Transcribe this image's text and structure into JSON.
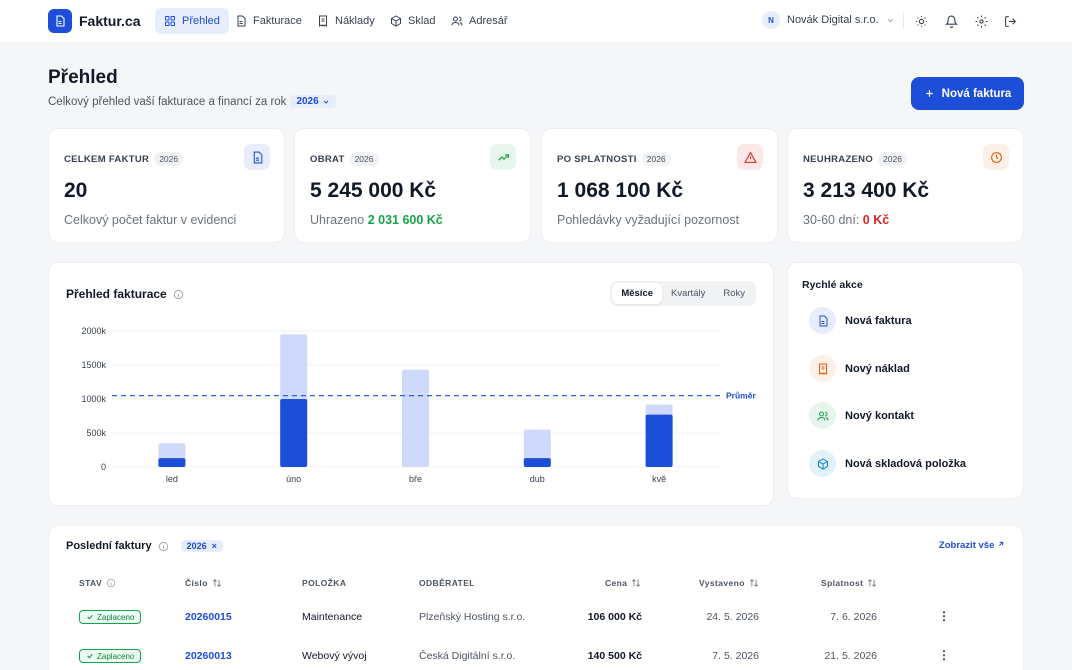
{
  "brand": {
    "name": "Faktur.ca",
    "icon": "document-icon"
  },
  "nav": [
    {
      "label": "Přehled",
      "icon": "grid-icon",
      "active": true
    },
    {
      "label": "Fakturace",
      "icon": "file-icon"
    },
    {
      "label": "Náklady",
      "icon": "receipt-icon"
    },
    {
      "label": "Sklad",
      "icon": "box-icon"
    },
    {
      "label": "Adresář",
      "icon": "users-icon"
    }
  ],
  "org": {
    "initial": "N",
    "name": "Novák Digital s.r.o."
  },
  "page": {
    "title": "Přehled",
    "subtitle": "Celkový přehled vaší fakturace a financí za rok",
    "year": "2026",
    "new_invoice_label": "Nová faktura"
  },
  "stats": [
    {
      "label": "CELKEM FAKTUR",
      "year": "2026",
      "value": "20",
      "note": "Celkový počet faktur v evidenci",
      "icon": "document-icon",
      "color": "#1d4ed8",
      "bg": "#e8edfb"
    },
    {
      "label": "OBRAT",
      "year": "2026",
      "value": "5 245 000 Kč",
      "note_prefix": "Uhrazeno",
      "note_value": "2 031 600 Kč",
      "icon": "trending-up-icon",
      "color": "#16a34a",
      "bg": "#e7f6ec"
    },
    {
      "label": "PO SPLATNOSTI",
      "year": "2026",
      "value": "1 068 100 Kč",
      "note": "Pohledávky vyžadující pozornost",
      "icon": "warning-icon",
      "color": "#dc2626",
      "bg": "#fde8e8"
    },
    {
      "label": "NEUHRAZENO",
      "year": "2026",
      "value": "3 213 400 Kč",
      "note_prefix": "30-60 dní:",
      "note_value": "0 Kč",
      "icon": "clock-icon",
      "color": "#ea580c",
      "bg": "#fdf0e6"
    }
  ],
  "chart_card": {
    "title": "Přehled fakturace",
    "tabs": [
      "Měsíce",
      "Kvartály",
      "Roky"
    ],
    "active_tab": "Měsíce"
  },
  "chart_data": {
    "type": "bar",
    "categories": [
      "led",
      "úno",
      "bře",
      "dub",
      "kvě"
    ],
    "series": [
      {
        "values": [
          350000,
          1950000,
          1430000,
          550000,
          920000
        ],
        "color": "#cfd9fb"
      },
      {
        "values": [
          130000,
          1000000,
          0,
          130000,
          770000
        ],
        "color": "#1d4ed8"
      }
    ],
    "ylim": [
      0,
      2000000
    ],
    "yticks": [
      0,
      500000,
      1000000,
      1500000,
      2000000
    ],
    "ytick_labels": [
      "0",
      "500k",
      "1000k",
      "1500k",
      "2000k"
    ],
    "average": {
      "label": "Průměr",
      "value": 1050000
    },
    "grid": true
  },
  "quick_actions": {
    "title": "Rychlé akce",
    "items": [
      {
        "label": "Nová faktura",
        "icon": "document-icon",
        "color": "#1d4ed8",
        "bg": "#e8edfb"
      },
      {
        "label": "Nový náklad",
        "icon": "receipt-icon",
        "color": "#ea580c",
        "bg": "#fdf0e6"
      },
      {
        "label": "Nový kontakt",
        "icon": "users-icon",
        "color": "#16a34a",
        "bg": "#e7f6ec"
      },
      {
        "label": "Nová skladová položka",
        "icon": "box-icon",
        "color": "#0284c7",
        "bg": "#e3f1fa"
      }
    ]
  },
  "recent": {
    "title": "Poslední faktury",
    "filter": "2026",
    "view_all": "Zobrazit vše",
    "headers": {
      "status": "STAV",
      "number": "Číslo",
      "item": "POLOŽKA",
      "customer": "ODBĚRATEL",
      "price": "Cena",
      "issued": "Vystaveno",
      "due": "Splatnost"
    },
    "rows": [
      {
        "status": "Zaplaceno",
        "number": "20260015",
        "item": "Maintenance",
        "customer": "Plzeňský Hosting s.r.o.",
        "price": "106 000 Kč",
        "issued": "24. 5. 2026",
        "due": "7. 6. 2026"
      },
      {
        "status": "Zaplaceno",
        "number": "20260013",
        "item": "Webový vývoj",
        "customer": "Česká Digitální s.r.o.",
        "price": "140 500 Kč",
        "issued": "7. 5. 2026",
        "due": "21. 5. 2026"
      }
    ]
  }
}
